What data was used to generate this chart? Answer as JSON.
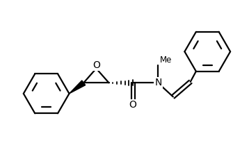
{
  "bg_color": "#ffffff",
  "line_color": "#000000",
  "line_width": 1.6,
  "fig_width": 3.58,
  "fig_height": 2.42,
  "dpi": 100,
  "xlim": [
    0,
    10
  ],
  "ylim": [
    0,
    7
  ]
}
